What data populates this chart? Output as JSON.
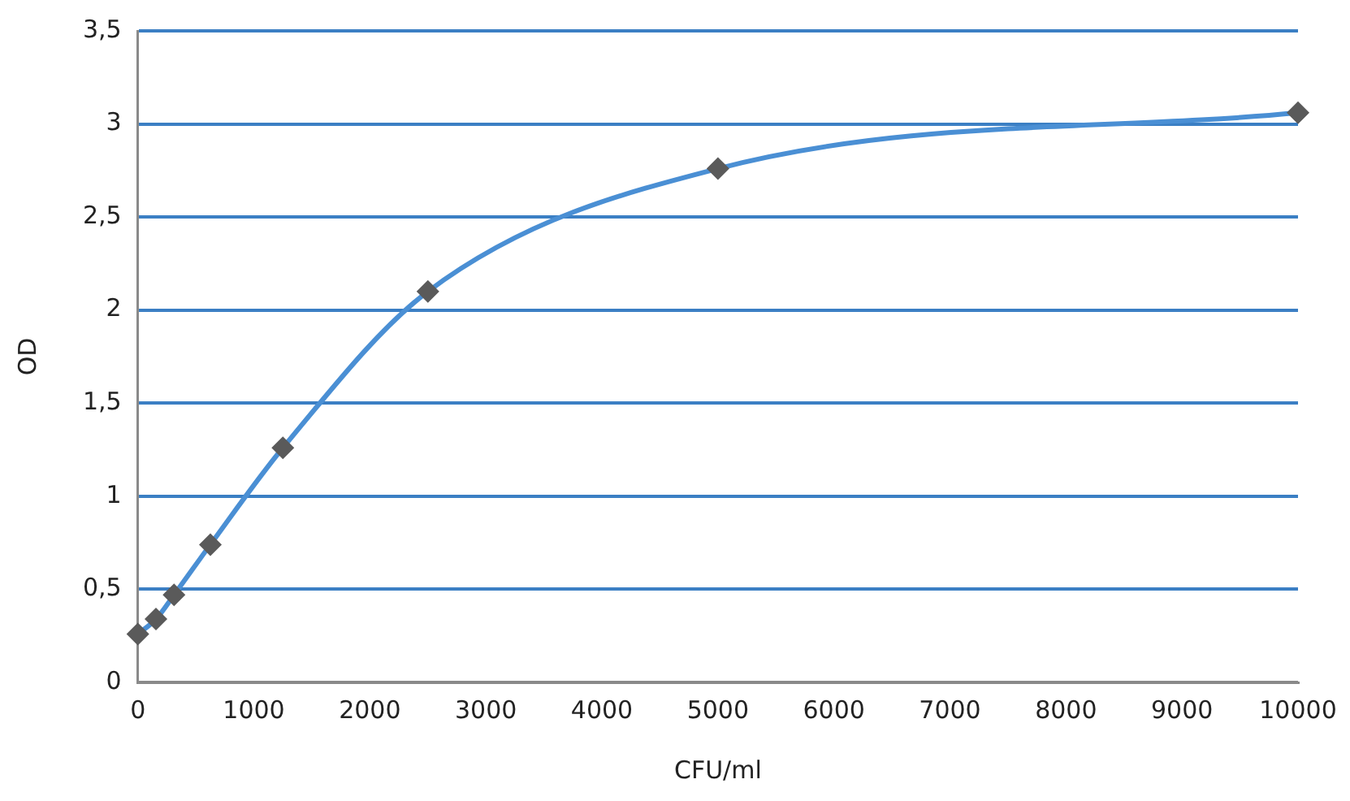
{
  "chart_data": {
    "type": "scatter",
    "xlabel": "CFU/ml",
    "ylabel": "OD",
    "x": [
      0,
      156,
      312,
      625,
      1250,
      2500,
      5000,
      10000
    ],
    "series": [
      {
        "type": "line",
        "color": "#4a8fd4",
        "marker": "none",
        "values": [
          0.26,
          0.34,
          0.47,
          0.74,
          1.26,
          2.1,
          2.76,
          3.06
        ]
      },
      {
        "type": "scatter",
        "color": "#5a5a5a",
        "marker": "diamond",
        "values": [
          0.26,
          0.34,
          0.47,
          0.74,
          1.26,
          2.1,
          2.76,
          3.06
        ]
      }
    ],
    "xlim": [
      0,
      10000
    ],
    "xticks": [
      0,
      1000,
      2000,
      3000,
      4000,
      5000,
      6000,
      7000,
      8000,
      9000,
      10000
    ],
    "ylim": [
      0,
      3.5
    ],
    "yticks": [
      0,
      {
        "value": 0.5,
        "label": "0,5"
      },
      1,
      {
        "value": 1.5,
        "label": "1,5"
      },
      2,
      {
        "value": 2.5,
        "label": "2,5"
      },
      3,
      {
        "value": 3.5,
        "label": "3,5"
      }
    ],
    "grid": "y",
    "legend": false
  }
}
